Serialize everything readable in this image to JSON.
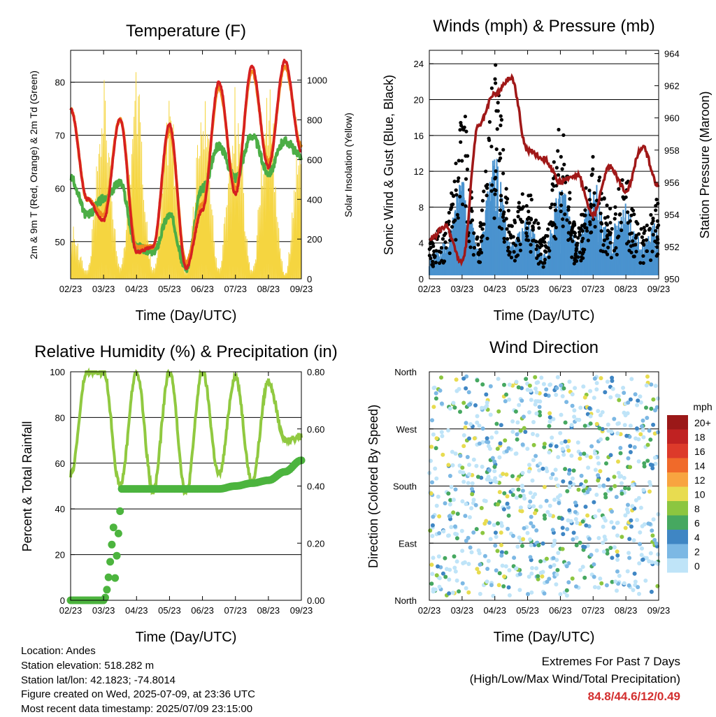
{
  "x_ticks": [
    "02/23",
    "03/23",
    "04/23",
    "05/23",
    "06/23",
    "07/23",
    "08/23",
    "09/23"
  ],
  "colors": {
    "temp_red": "#d62020",
    "temp_orange": "#f08a1c",
    "dewpoint_green": "#4cae46",
    "solar_yellow": "#f5d540",
    "wind_blue": "#4a93cf",
    "gust_black": "#000000",
    "pressure_maroon": "#a01818",
    "rh_green": "#90c940",
    "precip_green": "#4cb43e"
  },
  "info": {
    "location": "Location: Andes",
    "elevation": "Station elevation: 518.282 m",
    "latlon": "Station lat/lon: 42.1823; -74.8014",
    "created": "Figure created on Wed, 2025-07-09, at 23:36 UTC",
    "recent": "Most recent data timestamp: 2025/07/09 23:15:00"
  },
  "extremes": {
    "line1": "Extremes For Past 7 Days",
    "line2": "(High/Low/Max Wind/Total Precipitation)",
    "values": "84.8/44.6/12/0.49"
  },
  "chart_data": [
    {
      "type": "line",
      "title": "Temperature (F)",
      "xlabel": "Time (Day/UTC)",
      "ylabel": "2m & 9m T (Red, Orange) & 2m Td (Green)",
      "ylabel_right": "Solar Insolation (Yellow)",
      "ylim": [
        43,
        86
      ],
      "yticks": [
        50,
        60,
        70,
        80
      ],
      "ylim_right": [
        0,
        1150
      ],
      "yticks_right": [
        0,
        200,
        400,
        600,
        800,
        1000
      ],
      "x": [
        0,
        0.5,
        1,
        1.5,
        2,
        2.5,
        3,
        3.5,
        4,
        4.5,
        5,
        5.5,
        6,
        6.5,
        7
      ],
      "series": [
        {
          "values": [
            75,
            58,
            54,
            73,
            48,
            49,
            72,
            45,
            56,
            80,
            59,
            83,
            64,
            84,
            67
          ]
        },
        {
          "values": [
            75,
            58,
            55,
            73,
            49,
            49,
            71,
            46,
            57,
            79,
            60,
            82,
            65,
            83,
            68
          ]
        },
        {
          "values": [
            62,
            55,
            58,
            61,
            49,
            48,
            55,
            45,
            60,
            68,
            62,
            70,
            63,
            69,
            66
          ]
        },
        {
          "values": [
            300,
            50,
            1050,
            80,
            1100,
            60,
            1000,
            40,
            1050,
            70,
            1080,
            50,
            1050,
            30,
            900
          ]
        }
      ]
    },
    {
      "type": "line",
      "title": "Winds (mph) & Pressure (mb)",
      "xlabel": "Time (Day/UTC)",
      "ylabel": "Sonic Wind & Gust (Blue, Black)",
      "ylabel_right": "Station Pressure (Maroon)",
      "ylim": [
        0,
        25.5
      ],
      "yticks": [
        0,
        4,
        8,
        12,
        16,
        20,
        24
      ],
      "ylim_right": [
        950,
        964.2
      ],
      "yticks_right": [
        950,
        952,
        954,
        956,
        958,
        960,
        962,
        964
      ],
      "x": [
        0,
        0.5,
        1,
        1.5,
        2,
        2.5,
        3,
        3.5,
        4,
        4.5,
        5,
        5.5,
        6,
        6.5,
        7
      ],
      "series": [
        {
          "values": [
            2,
            3,
            8,
            3,
            10,
            3,
            5,
            2,
            8,
            3,
            8,
            4,
            6,
            3,
            5
          ]
        },
        {
          "values": [
            4,
            6,
            18,
            5,
            22,
            6,
            9,
            4,
            15,
            5,
            12,
            7,
            10,
            5,
            8
          ]
        },
        {
          "values": [
            952.5,
            953.2,
            951,
            959.5,
            961.5,
            962.5,
            958,
            957.5,
            956,
            956.5,
            954,
            957,
            955.5,
            958.2,
            955.8
          ]
        }
      ]
    },
    {
      "type": "line",
      "title": "Relative Humidity (%) & Precipitation (in)",
      "xlabel": "Time (Day/UTC)",
      "ylabel": "Percent & Total Rainfall",
      "ylim": [
        0,
        100
      ],
      "yticks": [
        0,
        20,
        40,
        60,
        80,
        100
      ],
      "ylim_right": [
        0,
        0.8
      ],
      "yticks_right": [
        "0.00",
        "0.20",
        "0.40",
        "0.60",
        "0.80"
      ],
      "x": [
        0,
        0.5,
        1,
        1.5,
        2,
        2.5,
        3,
        3.5,
        4,
        4.5,
        5,
        5.5,
        6,
        6.5,
        7
      ],
      "series": [
        {
          "values": [
            55,
            100,
            100,
            50,
            100,
            48,
            100,
            47,
            100,
            55,
            98,
            52,
            96,
            70,
            72
          ]
        },
        {
          "values": [
            0,
            0,
            0,
            0.39,
            0.39,
            0.39,
            0.39,
            0.39,
            0.39,
            0.39,
            0.4,
            0.41,
            0.42,
            0.45,
            0.49
          ]
        }
      ]
    },
    {
      "type": "scatter",
      "title": "Wind Direction",
      "xlabel": "Time (Day/UTC)",
      "ylabel": "Direction (Colored By Speed)",
      "y_categories": [
        "North",
        "West",
        "South",
        "East",
        "North"
      ],
      "colorbar": {
        "title": "mph",
        "labels": [
          "20+",
          "18",
          "16",
          "14",
          "12",
          "10",
          "8",
          "6",
          "4",
          "2",
          "0"
        ],
        "colors": [
          "#9b1818",
          "#c02222",
          "#dd3a2a",
          "#f06a2a",
          "#f8a440",
          "#e8dc50",
          "#8cc640",
          "#46a860",
          "#3f86c4",
          "#7cb8e4",
          "#bfe4f8"
        ]
      }
    }
  ]
}
